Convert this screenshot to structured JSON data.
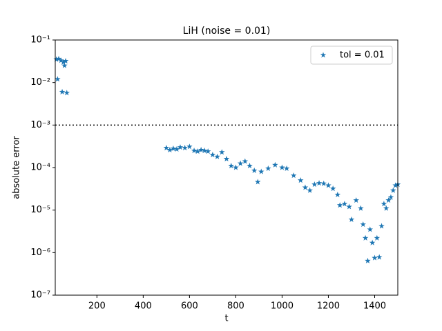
{
  "chart_data": {
    "type": "scatter",
    "title": "LiH (noise = 0.01)",
    "x_label": "t",
    "y_label": "absolute error",
    "xlim": [
      20,
      1500
    ],
    "xticks": [
      200,
      400,
      600,
      800,
      1000,
      1200,
      1400
    ],
    "ylim": [
      1e-07,
      0.1
    ],
    "y_scale": "log",
    "yticks": [
      {
        "value": 1e-07,
        "label": "10⁻⁷"
      },
      {
        "value": 1e-06,
        "label": "10⁻⁶"
      },
      {
        "value": 1e-05,
        "label": "10⁻⁵"
      },
      {
        "value": 0.0001,
        "label": "10⁻⁴"
      },
      {
        "value": 0.001,
        "label": "10⁻³"
      },
      {
        "value": 0.01,
        "label": "10⁻²"
      },
      {
        "value": 0.1,
        "label": "10⁻¹"
      }
    ],
    "hline": 0.001,
    "legend": "upper right",
    "series": [
      {
        "name": "tol = 0.01",
        "color": "#1f77b4",
        "marker": "star",
        "x": [
          25,
          30,
          35,
          45,
          50,
          55,
          60,
          65,
          70,
          500,
          515,
          530,
          545,
          560,
          580,
          600,
          620,
          635,
          650,
          665,
          680,
          700,
          720,
          740,
          760,
          780,
          800,
          820,
          840,
          860,
          880,
          895,
          910,
          940,
          970,
          1000,
          1020,
          1050,
          1080,
          1100,
          1120,
          1140,
          1160,
          1180,
          1200,
          1220,
          1240,
          1250,
          1270,
          1290,
          1300,
          1320,
          1340,
          1350,
          1360,
          1370,
          1380,
          1390,
          1400,
          1410,
          1420,
          1430,
          1440,
          1450,
          1460,
          1470,
          1480,
          1490,
          1500
        ],
        "values": [
          0.035,
          0.012,
          0.036,
          0.033,
          0.006,
          0.03,
          0.025,
          0.032,
          0.0057,
          0.00029,
          0.00026,
          0.00028,
          0.00027,
          0.0003,
          0.00029,
          0.00031,
          0.00025,
          0.00024,
          0.00026,
          0.00025,
          0.00024,
          0.0002,
          0.00018,
          0.00023,
          0.00016,
          0.00011,
          0.0001,
          0.000125,
          0.00014,
          0.00011,
          8.5e-05,
          4.6e-05,
          8e-05,
          9.5e-05,
          0.000115,
          0.0001,
          9.5e-05,
          6.5e-05,
          5e-05,
          3.4e-05,
          2.9e-05,
          4e-05,
          4.3e-05,
          4.2e-05,
          3.8e-05,
          3.2e-05,
          2.3e-05,
          1.3e-05,
          1.4e-05,
          1.2e-05,
          6e-06,
          1.7e-05,
          1.1e-05,
          4.6e-06,
          2.2e-06,
          6.4e-07,
          3.5e-06,
          1.7e-06,
          7.5e-07,
          2.2e-06,
          7.8e-07,
          4.2e-06,
          1.4e-05,
          1.1e-05,
          1.7e-05,
          2e-05,
          2.9e-05,
          3.8e-05,
          4e-05
        ]
      }
    ]
  }
}
